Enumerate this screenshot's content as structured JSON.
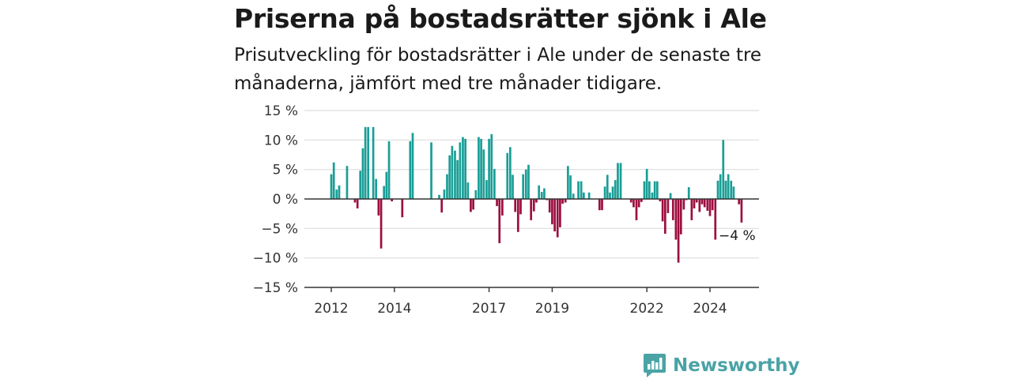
{
  "title": "Priserna på bostadsrätter sjönk i Ale",
  "subtitle": "Prisutveckling för bostadsrätter i Ale under de senaste tre månaderna, jämfört med tre månader tidigare.",
  "brand": {
    "name": "Newsworthy"
  },
  "colors": {
    "positive": "#1a9e96",
    "negative": "#9c0f40",
    "grid": "#dddddd",
    "axis": "#333333",
    "brand": "#4aa3a5"
  },
  "chart_data": {
    "type": "bar",
    "title": "Priserna på bostadsrätter sjönk i Ale",
    "subtitle": "Prisutveckling för bostadsrätter i Ale under de senaste tre månaderna, jämfört med tre månader tidigare.",
    "xlabel": "",
    "ylabel": "",
    "ylim": [
      -15,
      15
    ],
    "y_ticks": [
      15,
      10,
      5,
      0,
      -5,
      -10,
      -15
    ],
    "y_tick_labels": [
      "15 %",
      "10 %",
      "5 %",
      "0 %",
      "−5 %",
      "−10 %",
      "−15 %"
    ],
    "x_ticks": [
      2012,
      2014,
      2017,
      2019,
      2022,
      2024
    ],
    "x_tick_labels": [
      "2012",
      "2014",
      "2017",
      "2019",
      "2022",
      "2024"
    ],
    "grid": true,
    "annotation": {
      "label": "−4 %",
      "value": -4
    },
    "x_range": [
      2011.7,
      2026.0
    ],
    "series": [
      {
        "values": [
          [
            2012.0,
            4.2
          ],
          [
            2012.08,
            6.2
          ],
          [
            2012.17,
            1.6
          ],
          [
            2012.25,
            2.3
          ],
          [
            2012.5,
            5.6
          ],
          [
            2012.75,
            -0.6
          ],
          [
            2012.83,
            -1.6
          ],
          [
            2012.92,
            4.8
          ],
          [
            2013.0,
            8.6
          ],
          [
            2013.08,
            12.2
          ],
          [
            2013.17,
            12.2
          ],
          [
            2013.33,
            12.2
          ],
          [
            2013.42,
            3.4
          ],
          [
            2013.5,
            -2.8
          ],
          [
            2013.58,
            -8.4
          ],
          [
            2013.67,
            2.2
          ],
          [
            2013.75,
            4.6
          ],
          [
            2013.83,
            9.8
          ],
          [
            2013.92,
            -0.4
          ],
          [
            2014.25,
            -3.1
          ],
          [
            2014.5,
            9.8
          ],
          [
            2014.58,
            11.2
          ],
          [
            2015.17,
            9.6
          ],
          [
            2015.42,
            0.7
          ],
          [
            2015.5,
            -2.3
          ],
          [
            2015.58,
            1.6
          ],
          [
            2015.67,
            4.2
          ],
          [
            2015.75,
            7.4
          ],
          [
            2015.83,
            9.0
          ],
          [
            2015.92,
            8.2
          ],
          [
            2016.0,
            6.6
          ],
          [
            2016.08,
            9.6
          ],
          [
            2016.17,
            10.5
          ],
          [
            2016.25,
            10.2
          ],
          [
            2016.33,
            2.8
          ],
          [
            2016.42,
            -2.2
          ],
          [
            2016.5,
            -1.8
          ],
          [
            2016.58,
            1.5
          ],
          [
            2016.67,
            10.5
          ],
          [
            2016.75,
            10.2
          ],
          [
            2016.83,
            8.4
          ],
          [
            2016.92,
            3.2
          ],
          [
            2017.0,
            10.2
          ],
          [
            2017.08,
            11.0
          ],
          [
            2017.17,
            5.1
          ],
          [
            2017.25,
            -1.2
          ],
          [
            2017.33,
            -7.5
          ],
          [
            2017.42,
            -2.8
          ],
          [
            2017.58,
            7.8
          ],
          [
            2017.67,
            8.8
          ],
          [
            2017.75,
            4.1
          ],
          [
            2017.83,
            -2.2
          ],
          [
            2017.92,
            -5.6
          ],
          [
            2018.0,
            -2.6
          ],
          [
            2018.08,
            4.2
          ],
          [
            2018.17,
            5.0
          ],
          [
            2018.25,
            5.8
          ],
          [
            2018.33,
            -3.6
          ],
          [
            2018.42,
            -2.1
          ],
          [
            2018.5,
            -0.6
          ],
          [
            2018.58,
            2.3
          ],
          [
            2018.67,
            1.2
          ],
          [
            2018.75,
            1.8
          ],
          [
            2018.83,
            -0.2
          ],
          [
            2018.92,
            -2.3
          ],
          [
            2019.0,
            -4.3
          ],
          [
            2019.08,
            -5.5
          ],
          [
            2019.17,
            -6.5
          ],
          [
            2019.25,
            -4.8
          ],
          [
            2019.33,
            -0.8
          ],
          [
            2019.42,
            -0.6
          ],
          [
            2019.5,
            5.6
          ],
          [
            2019.58,
            4.0
          ],
          [
            2019.67,
            0.9
          ],
          [
            2019.83,
            3.0
          ],
          [
            2019.92,
            3.0
          ],
          [
            2020.0,
            1.1
          ],
          [
            2020.17,
            1.1
          ],
          [
            2020.5,
            -1.9
          ],
          [
            2020.58,
            -1.9
          ],
          [
            2020.67,
            2.1
          ],
          [
            2020.75,
            4.1
          ],
          [
            2020.83,
            1.1
          ],
          [
            2020.92,
            2.1
          ],
          [
            2021.0,
            3.2
          ],
          [
            2021.08,
            6.1
          ],
          [
            2021.17,
            6.1
          ],
          [
            2021.5,
            -0.6
          ],
          [
            2021.58,
            -1.4
          ],
          [
            2021.67,
            -3.6
          ],
          [
            2021.75,
            -1.4
          ],
          [
            2021.83,
            -0.5
          ],
          [
            2021.92,
            3.0
          ],
          [
            2022.0,
            5.1
          ],
          [
            2022.08,
            3.0
          ],
          [
            2022.17,
            1.1
          ],
          [
            2022.25,
            3.0
          ],
          [
            2022.33,
            3.0
          ],
          [
            2022.42,
            -0.4
          ],
          [
            2022.5,
            -3.8
          ],
          [
            2022.58,
            -5.9
          ],
          [
            2022.67,
            -2.4
          ],
          [
            2022.75,
            1.0
          ],
          [
            2022.83,
            -3.6
          ],
          [
            2022.92,
            -6.9
          ],
          [
            2023.0,
            -10.8
          ],
          [
            2023.08,
            -6.0
          ],
          [
            2023.17,
            -1.8
          ],
          [
            2023.25,
            -0.2
          ],
          [
            2023.33,
            2.0
          ],
          [
            2023.42,
            -3.6
          ],
          [
            2023.5,
            -1.6
          ],
          [
            2023.58,
            -0.6
          ],
          [
            2023.67,
            -2.2
          ],
          [
            2023.75,
            -0.9
          ],
          [
            2023.83,
            -1.4
          ],
          [
            2023.92,
            -2.0
          ],
          [
            2024.0,
            -2.9
          ],
          [
            2024.08,
            -1.9
          ],
          [
            2024.17,
            -6.9
          ],
          [
            2024.25,
            3.1
          ],
          [
            2024.33,
            4.2
          ],
          [
            2024.42,
            10.0
          ],
          [
            2024.5,
            3.1
          ],
          [
            2024.58,
            4.2
          ],
          [
            2024.67,
            3.1
          ],
          [
            2024.75,
            2.1
          ],
          [
            2024.92,
            -0.9
          ],
          [
            2025.0,
            -4.0
          ]
        ]
      }
    ]
  }
}
